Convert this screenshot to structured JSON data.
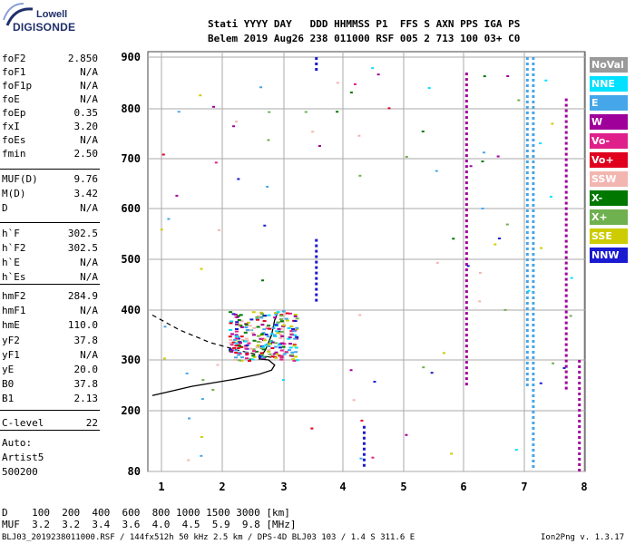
{
  "logo": {
    "line1": "Lowell",
    "line2": "DIGISONDE"
  },
  "header": {
    "row1": "Stati YYYY DAY   DDD HHMMSS P1  FFS S AXN PPS IGA PS",
    "row2": "Belem 2019 Aug26 238 011000 RSF 005 2 713 100 03+ C0"
  },
  "params": [
    {
      "k": "foF2",
      "v": "2.850"
    },
    {
      "k": "foF1",
      "v": "N/A"
    },
    {
      "k": "foF1p",
      "v": "N/A"
    },
    {
      "k": "foE",
      "v": "N/A"
    },
    {
      "k": "foEp",
      "v": "0.35"
    },
    {
      "k": "fxI",
      "v": "3.20"
    },
    {
      "k": "foEs",
      "v": "N/A"
    },
    {
      "k": "fmin",
      "v": "2.50"
    },
    {
      "k": "MUF(D)",
      "v": "9.76"
    },
    {
      "k": "M(D)",
      "v": "3.42"
    },
    {
      "k": "D",
      "v": "N/A"
    },
    {
      "k": "h`F",
      "v": "302.5"
    },
    {
      "k": "h`F2",
      "v": "302.5"
    },
    {
      "k": "h`E",
      "v": "N/A"
    },
    {
      "k": "h`Es",
      "v": "N/A"
    },
    {
      "k": "hmF2",
      "v": "284.9"
    },
    {
      "k": "hmF1",
      "v": "N/A"
    },
    {
      "k": "hmE",
      "v": "110.0"
    },
    {
      "k": "yF2",
      "v": "37.8"
    },
    {
      "k": "yF1",
      "v": "N/A"
    },
    {
      "k": "yE",
      "v": "20.0"
    },
    {
      "k": "B0",
      "v": "37.8"
    },
    {
      "k": "B1",
      "v": "2.13"
    },
    {
      "k": "C-level",
      "v": "22"
    }
  ],
  "auto": {
    "label": "Auto:",
    "name": "Artist5",
    "code": "500200"
  },
  "legend": [
    {
      "label": "NoVal",
      "color": "#9a9a9a"
    },
    {
      "label": "NNE",
      "color": "#00e0ff"
    },
    {
      "label": "E",
      "color": "#45a6ea"
    },
    {
      "label": "W",
      "color": "#a0009a"
    },
    {
      "label": "Vo-",
      "color": "#e0208a"
    },
    {
      "label": "Vo+",
      "color": "#e0001e"
    },
    {
      "label": "SSW",
      "color": "#f3b5b0"
    },
    {
      "label": "X-",
      "color": "#007800"
    },
    {
      "label": "X+",
      "color": "#6fb04f"
    },
    {
      "label": "SSE",
      "color": "#cccc00"
    },
    {
      "label": "NNW",
      "color": "#1a1ad0"
    }
  ],
  "chart_data": {
    "type": "scatter",
    "title": "",
    "xlabel": "",
    "ylabel": "",
    "x_ticks": [
      "1",
      "2",
      "3",
      "4",
      "5",
      "6",
      "7",
      "8"
    ],
    "y_ticks": [
      "900",
      "800",
      "700",
      "600",
      "500",
      "400",
      "300",
      "200",
      "80"
    ],
    "xlim": [
      0.85,
      8.05
    ],
    "ylim": [
      80,
      900
    ],
    "y_scale": "nonlinear (virtual height, km)",
    "grid": true,
    "legend_position": "right",
    "solid_profile_curve": [
      [
        0.85,
        230
      ],
      [
        1.5,
        248
      ],
      [
        2.2,
        262
      ],
      [
        2.6,
        272
      ],
      [
        2.8,
        280
      ],
      [
        2.85,
        290
      ],
      [
        2.75,
        300
      ],
      [
        2.6,
        302
      ],
      [
        2.7,
        320
      ],
      [
        2.8,
        350
      ],
      [
        2.85,
        380
      ],
      [
        2.9,
        395
      ]
    ],
    "dashed_profile_curve": [
      [
        0.85,
        390
      ],
      [
        1.3,
        360
      ],
      [
        1.8,
        335
      ],
      [
        2.3,
        318
      ],
      [
        2.6,
        310
      ],
      [
        2.8,
        305
      ]
    ],
    "traces": [
      {
        "series": "NNW",
        "x": 3.55,
        "y_from": 870,
        "y_to": 900
      },
      {
        "series": "NNW",
        "x": 3.55,
        "y_from": 420,
        "y_to": 540
      },
      {
        "series": "NNW",
        "x": 4.35,
        "y_from": 85,
        "y_to": 170
      },
      {
        "series": "E",
        "x": 7.05,
        "y_from": 250,
        "y_to": 900
      },
      {
        "series": "E",
        "x": 7.15,
        "y_from": 90,
        "y_to": 900
      },
      {
        "series": "W",
        "x": 6.05,
        "y_from": 250,
        "y_to": 870
      },
      {
        "series": "W",
        "x": 7.7,
        "y_from": 240,
        "y_to": 820
      },
      {
        "series": "W",
        "x": 7.92,
        "y_from": 85,
        "y_to": 300
      }
    ]
  },
  "footer": {
    "d_row": "D    100  200  400  600  800 1000 1500 3000 [km]",
    "muf_row": "MUF  3.2  3.2  3.4  3.6  4.0  4.5  5.9  9.8 [MHz]",
    "file_info": "BLJ03_2019238011000.RSF / 144fx512h 50 kHz 2.5 km / DPS-4D BLJ03 103 / 1.4 S 311.6 E",
    "version": "Ion2Png v. 1.3.17"
  }
}
